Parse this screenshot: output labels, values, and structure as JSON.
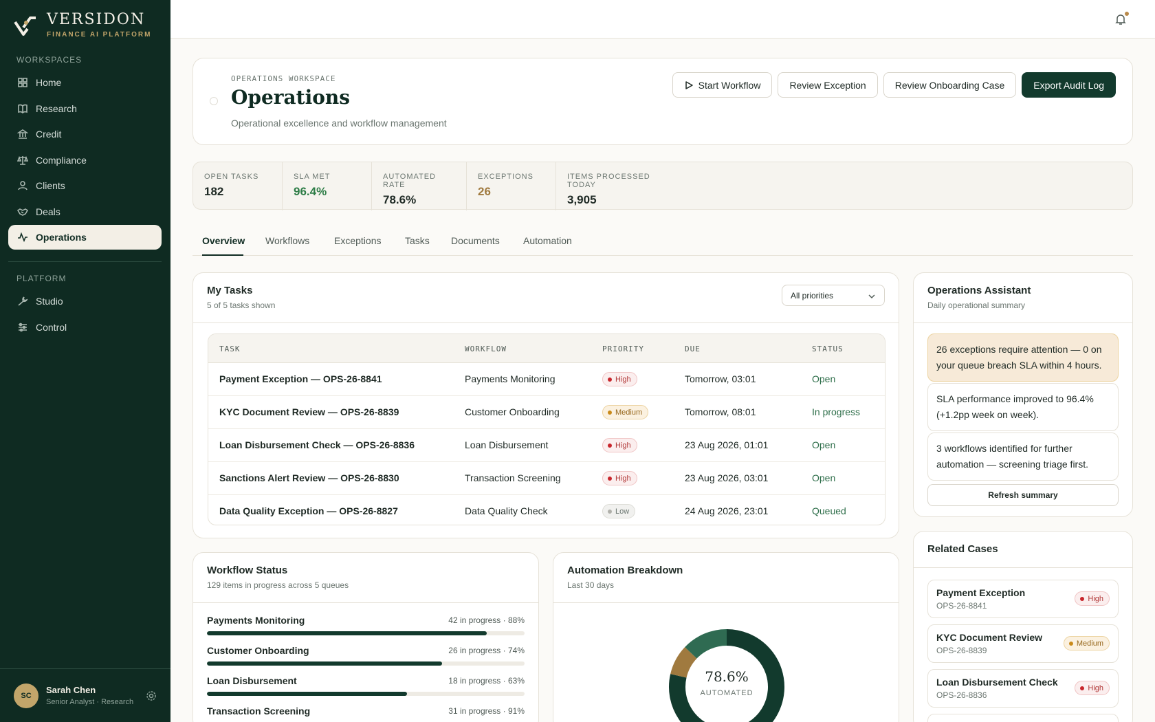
{
  "brand": {
    "name": "VERSIDON",
    "tagline": "FINANCE AI PLATFORM"
  },
  "sidebar": {
    "workspaces_label": "WORKSPACES",
    "workspaces": [
      {
        "label": "Home",
        "icon": "grid-icon"
      },
      {
        "label": "Research",
        "icon": "book-icon"
      },
      {
        "label": "Credit",
        "icon": "bank-icon"
      },
      {
        "label": "Compliance",
        "icon": "scale-icon"
      },
      {
        "label": "Clients",
        "icon": "user-icon"
      },
      {
        "label": "Deals",
        "icon": "handshake-icon"
      },
      {
        "label": "Operations",
        "icon": "activity-icon",
        "active": true
      }
    ],
    "platform_label": "PLATFORM",
    "platform": [
      {
        "label": "Studio",
        "icon": "wrench-icon"
      },
      {
        "label": "Control",
        "icon": "sliders-icon"
      }
    ]
  },
  "user": {
    "initials": "SC",
    "name": "Sarah Chen",
    "role": "Senior Analyst · Research"
  },
  "hero": {
    "eyebrow": "OPERATIONS WORKSPACE",
    "title": "Operations",
    "description": "Operational excellence and workflow management",
    "actions": [
      "Start Workflow",
      "Review Exception",
      "Review Onboarding Case",
      "Export Audit Log"
    ]
  },
  "kpis": [
    {
      "label": "OPEN TASKS",
      "value": "182"
    },
    {
      "label": "SLA MET",
      "value": "96.4%"
    },
    {
      "label": "AUTOMATED RATE",
      "value": "78.6%"
    },
    {
      "label": "EXCEPTIONS",
      "value": "26"
    },
    {
      "label": "ITEMS PROCESSED TODAY",
      "value": "3,905"
    }
  ],
  "tabs": [
    "Overview",
    "Workflows",
    "Exceptions",
    "Tasks",
    "Documents",
    "Automation"
  ],
  "tasks": {
    "title": "My Tasks",
    "subtitle": "5 of 5 tasks shown",
    "filter": "All priorities",
    "columns": [
      "TASK",
      "WORKFLOW",
      "PRIORITY",
      "DUE",
      "STATUS"
    ],
    "rows": [
      {
        "task": "Payment Exception — OPS-26-8841",
        "workflow": "Payments Monitoring",
        "priority": "High",
        "due": "Tomorrow, 03:01",
        "status": "Open"
      },
      {
        "task": "KYC Document Review — OPS-26-8839",
        "workflow": "Customer Onboarding",
        "priority": "Medium",
        "due": "Tomorrow, 08:01",
        "status": "In progress"
      },
      {
        "task": "Loan Disbursement Check — OPS-26-8836",
        "workflow": "Loan Disbursement",
        "priority": "High",
        "due": "23 Aug 2026, 01:01",
        "status": "Open"
      },
      {
        "task": "Sanctions Alert Review — OPS-26-8830",
        "workflow": "Transaction Screening",
        "priority": "High",
        "due": "23 Aug 2026, 03:01",
        "status": "Open"
      },
      {
        "task": "Data Quality Exception — OPS-26-8827",
        "workflow": "Data Quality Check",
        "priority": "Low",
        "due": "24 Aug 2026, 23:01",
        "status": "Queued"
      }
    ]
  },
  "workflow_status": {
    "title": "Workflow Status",
    "subtitle": "129 items in progress across 5 queues",
    "items": [
      {
        "name": "Payments Monitoring",
        "meta": "42 in progress · 88%",
        "pct": 88
      },
      {
        "name": "Customer Onboarding",
        "meta": "26 in progress · 74%",
        "pct": 74
      },
      {
        "name": "Loan Disbursement",
        "meta": "18 in progress · 63%",
        "pct": 63
      },
      {
        "name": "Transaction Screening",
        "meta": "31 in progress · 91%",
        "pct": 91
      }
    ]
  },
  "automation": {
    "title": "Automation Breakdown",
    "subtitle": "Last 30 days",
    "center_value": "78.6%",
    "center_label": "AUTOMATED",
    "segments": [
      {
        "value": 78.6,
        "color": "#123a2d"
      },
      {
        "value": 8.5,
        "color": "#a07a3f"
      },
      {
        "value": 12.9,
        "color": "#2f6b52"
      }
    ]
  },
  "assistant": {
    "title": "Operations Assistant",
    "subtitle": "Daily operational summary",
    "insights": [
      "26 exceptions require attention — 0 on your queue breach SLA within 4 hours.",
      "SLA performance improved to 96.4% (+1.2pp week on week).",
      "3 workflows identified for further automation — screening triage first."
    ],
    "refresh": "Refresh summary"
  },
  "related": {
    "title": "Related Cases",
    "cases": [
      {
        "name": "Payment Exception",
        "id": "OPS-26-8841",
        "priority": "High"
      },
      {
        "name": "KYC Document Review",
        "id": "OPS-26-8839",
        "priority": "Medium"
      },
      {
        "name": "Loan Disbursement Check",
        "id": "OPS-26-8836",
        "priority": "High"
      }
    ]
  },
  "colors": {
    "sidebar": "#0f2b22",
    "accent": "#c2a56a",
    "primary": "#123a2d",
    "success": "#2e7d47"
  }
}
